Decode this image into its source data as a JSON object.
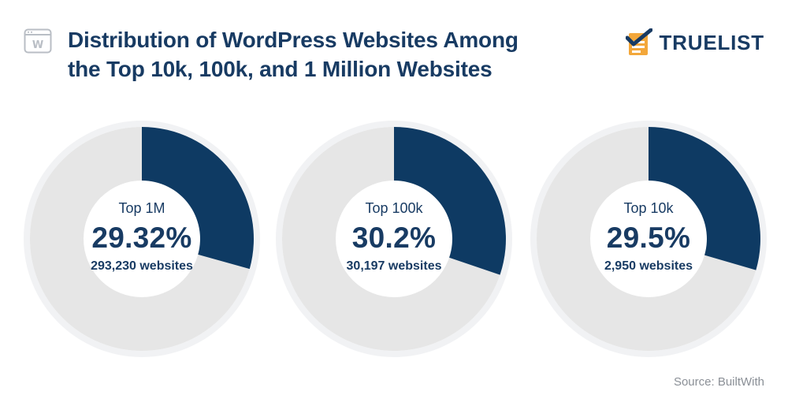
{
  "header": {
    "title_line1": "Distribution of WordPress Websites Among",
    "title_line2": "the Top 10k, 100k, and 1 Million Websites",
    "logo_icon": "wordpress-browser-icon",
    "brand_icon": "checklist-icon",
    "brand_name": "TRUELIST"
  },
  "colors": {
    "accent": "#0e3a63",
    "track": "#e6e6e6",
    "halo": "#f1f2f4",
    "title": "#183b63",
    "source": "#8a8f96"
  },
  "chart_data": [
    {
      "type": "pie",
      "label": "Top 1M",
      "value": 29.32,
      "value_text": "29.32%",
      "count_text": "293,230 websites"
    },
    {
      "type": "pie",
      "label": "Top 100k",
      "value": 30.2,
      "value_text": "30.2%",
      "count_text": "30,197 websites"
    },
    {
      "type": "pie",
      "label": "Top 10k",
      "value": 29.5,
      "value_text": "29.5%",
      "count_text": "2,950 websites"
    }
  ],
  "source": "Source: BuiltWith"
}
